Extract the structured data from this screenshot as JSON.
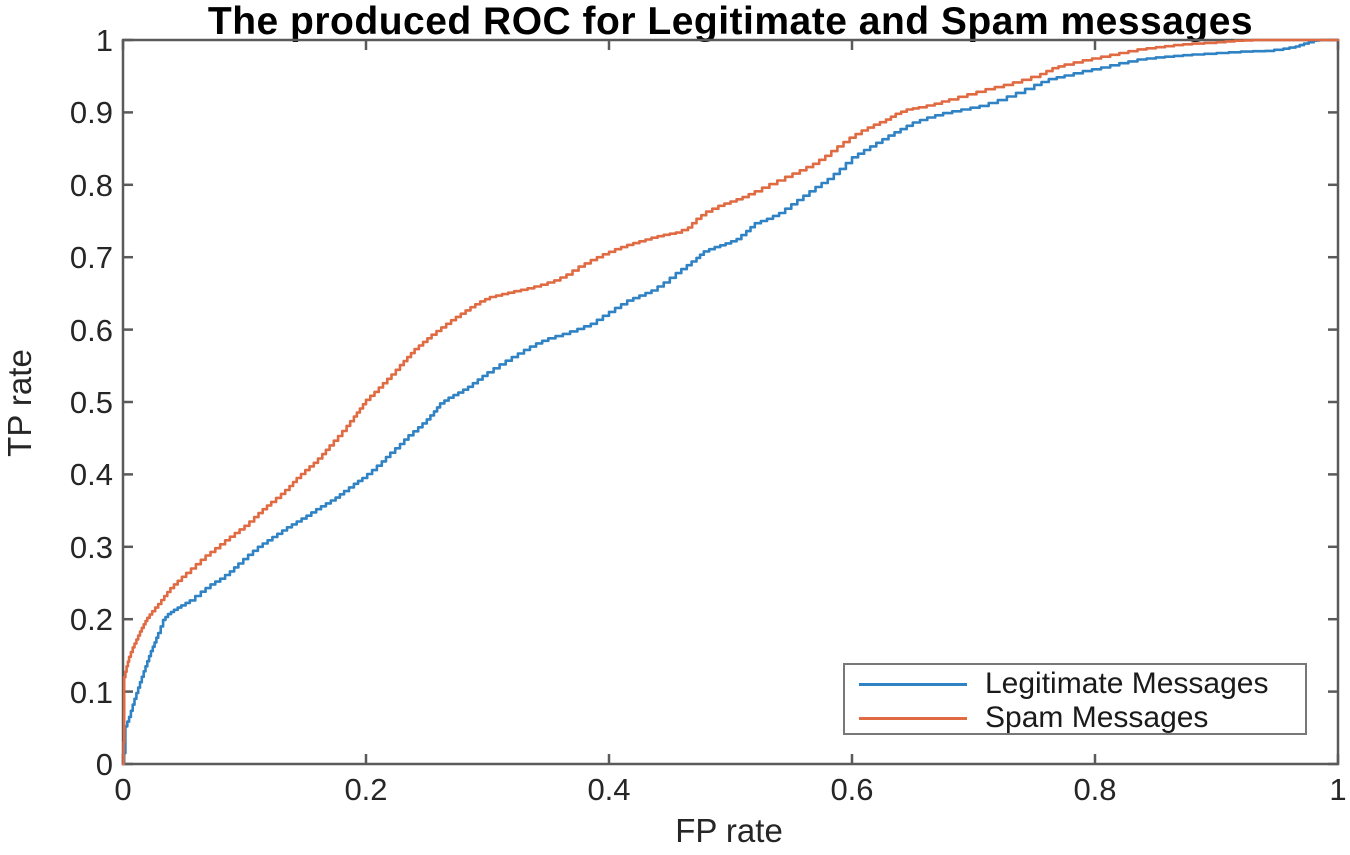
{
  "chart_data": {
    "type": "line",
    "title": "The produced ROC for Legitimate and Spam messages",
    "xlabel": "FP rate",
    "ylabel": "TP rate",
    "xlim": [
      0,
      1
    ],
    "ylim": [
      0,
      1
    ],
    "grid": false,
    "legend_position": "lower right",
    "x_ticks": [
      0,
      0.2,
      0.4,
      0.6,
      0.8,
      1
    ],
    "x_tick_labels": [
      "0",
      "0.2",
      "0.4",
      "0.6",
      "0.8",
      "1"
    ],
    "y_ticks": [
      0,
      0.1,
      0.2,
      0.3,
      0.4,
      0.5,
      0.6,
      0.7,
      0.8,
      0.9,
      1
    ],
    "y_tick_labels": [
      "0",
      "0.1",
      "0.2",
      "0.3",
      "0.4",
      "0.5",
      "0.6",
      "0.7",
      "0.8",
      "0.9",
      "1"
    ],
    "colors": {
      "axis": "#5a5a5a",
      "tick_label": "#262626",
      "title": "#000000",
      "legend_border": "#787878",
      "background": "#ffffff"
    },
    "series": [
      {
        "name": "Legitimate Messages",
        "color": "#2f82c4",
        "points": [
          [
            0,
            0
          ],
          [
            0.002,
            0.03
          ],
          [
            0.002,
            0.052
          ],
          [
            0.005,
            0.065
          ],
          [
            0.008,
            0.082
          ],
          [
            0.011,
            0.098
          ],
          [
            0.014,
            0.113
          ],
          [
            0.017,
            0.128
          ],
          [
            0.02,
            0.142
          ],
          [
            0.023,
            0.156
          ],
          [
            0.026,
            0.168
          ],
          [
            0.029,
            0.181
          ],
          [
            0.033,
            0.199
          ],
          [
            0.037,
            0.207
          ],
          [
            0.042,
            0.213
          ],
          [
            0.048,
            0.219
          ],
          [
            0.055,
            0.226
          ],
          [
            0.064,
            0.238
          ],
          [
            0.072,
            0.248
          ],
          [
            0.08,
            0.256
          ],
          [
            0.088,
            0.266
          ],
          [
            0.095,
            0.277
          ],
          [
            0.103,
            0.289
          ],
          [
            0.111,
            0.3
          ],
          [
            0.119,
            0.309
          ],
          [
            0.127,
            0.318
          ],
          [
            0.135,
            0.327
          ],
          [
            0.143,
            0.335
          ],
          [
            0.151,
            0.343
          ],
          [
            0.159,
            0.352
          ],
          [
            0.167,
            0.36
          ],
          [
            0.175,
            0.368
          ],
          [
            0.182,
            0.377
          ],
          [
            0.19,
            0.387
          ],
          [
            0.197,
            0.395
          ],
          [
            0.205,
            0.406
          ],
          [
            0.213,
            0.418
          ],
          [
            0.22,
            0.43
          ],
          [
            0.228,
            0.442
          ],
          [
            0.235,
            0.454
          ],
          [
            0.243,
            0.465
          ],
          [
            0.25,
            0.476
          ],
          [
            0.256,
            0.487
          ],
          [
            0.261,
            0.498
          ],
          [
            0.268,
            0.506
          ],
          [
            0.276,
            0.513
          ],
          [
            0.284,
            0.521
          ],
          [
            0.292,
            0.531
          ],
          [
            0.3,
            0.541
          ],
          [
            0.31,
            0.552
          ],
          [
            0.32,
            0.562
          ],
          [
            0.33,
            0.572
          ],
          [
            0.34,
            0.581
          ],
          [
            0.35,
            0.588
          ],
          [
            0.362,
            0.594
          ],
          [
            0.374,
            0.601
          ],
          [
            0.385,
            0.608
          ],
          [
            0.395,
            0.619
          ],
          [
            0.405,
            0.63
          ],
          [
            0.415,
            0.64
          ],
          [
            0.425,
            0.647
          ],
          [
            0.435,
            0.654
          ],
          [
            0.445,
            0.665
          ],
          [
            0.455,
            0.678
          ],
          [
            0.464,
            0.689
          ],
          [
            0.472,
            0.699
          ],
          [
            0.478,
            0.708
          ],
          [
            0.487,
            0.714
          ],
          [
            0.496,
            0.719
          ],
          [
            0.505,
            0.725
          ],
          [
            0.513,
            0.736
          ],
          [
            0.52,
            0.747
          ],
          [
            0.53,
            0.753
          ],
          [
            0.54,
            0.761
          ],
          [
            0.55,
            0.773
          ],
          [
            0.56,
            0.785
          ],
          [
            0.57,
            0.797
          ],
          [
            0.58,
            0.808
          ],
          [
            0.59,
            0.822
          ],
          [
            0.6,
            0.838
          ],
          [
            0.61,
            0.848
          ],
          [
            0.62,
            0.858
          ],
          [
            0.63,
            0.868
          ],
          [
            0.64,
            0.877
          ],
          [
            0.65,
            0.886
          ],
          [
            0.662,
            0.893
          ],
          [
            0.675,
            0.899
          ],
          [
            0.69,
            0.904
          ],
          [
            0.705,
            0.909
          ],
          [
            0.72,
            0.917
          ],
          [
            0.735,
            0.927
          ],
          [
            0.75,
            0.938
          ],
          [
            0.762,
            0.946
          ],
          [
            0.775,
            0.951
          ],
          [
            0.79,
            0.957
          ],
          [
            0.805,
            0.962
          ],
          [
            0.82,
            0.968
          ],
          [
            0.835,
            0.973
          ],
          [
            0.85,
            0.976
          ],
          [
            0.865,
            0.978
          ],
          [
            0.88,
            0.98
          ],
          [
            0.9,
            0.982
          ],
          [
            0.92,
            0.984
          ],
          [
            0.94,
            0.985
          ],
          [
            0.955,
            0.988
          ],
          [
            0.965,
            0.991
          ],
          [
            0.972,
            0.995
          ],
          [
            0.98,
            0.999
          ],
          [
            0.985,
            1
          ],
          [
            1,
            1
          ]
        ]
      },
      {
        "name": "Spam Messages",
        "color": "#e06a42",
        "points": [
          [
            0,
            0
          ],
          [
            0.001,
            0.06
          ],
          [
            0.001,
            0.12
          ],
          [
            0.003,
            0.135
          ],
          [
            0.005,
            0.148
          ],
          [
            0.008,
            0.161
          ],
          [
            0.011,
            0.172
          ],
          [
            0.014,
            0.183
          ],
          [
            0.017,
            0.193
          ],
          [
            0.02,
            0.202
          ],
          [
            0.024,
            0.211
          ],
          [
            0.029,
            0.221
          ],
          [
            0.034,
            0.232
          ],
          [
            0.039,
            0.243
          ],
          [
            0.045,
            0.253
          ],
          [
            0.052,
            0.264
          ],
          [
            0.06,
            0.276
          ],
          [
            0.068,
            0.288
          ],
          [
            0.076,
            0.298
          ],
          [
            0.084,
            0.309
          ],
          [
            0.092,
            0.319
          ],
          [
            0.1,
            0.329
          ],
          [
            0.108,
            0.341
          ],
          [
            0.115,
            0.352
          ],
          [
            0.122,
            0.362
          ],
          [
            0.13,
            0.373
          ],
          [
            0.137,
            0.384
          ],
          [
            0.143,
            0.395
          ],
          [
            0.15,
            0.406
          ],
          [
            0.157,
            0.416
          ],
          [
            0.164,
            0.428
          ],
          [
            0.17,
            0.44
          ],
          [
            0.177,
            0.453
          ],
          [
            0.184,
            0.467
          ],
          [
            0.19,
            0.48
          ],
          [
            0.195,
            0.491
          ],
          [
            0.2,
            0.503
          ],
          [
            0.207,
            0.514
          ],
          [
            0.214,
            0.526
          ],
          [
            0.221,
            0.538
          ],
          [
            0.228,
            0.551
          ],
          [
            0.234,
            0.562
          ],
          [
            0.24,
            0.573
          ],
          [
            0.247,
            0.583
          ],
          [
            0.254,
            0.593
          ],
          [
            0.262,
            0.603
          ],
          [
            0.27,
            0.613
          ],
          [
            0.278,
            0.622
          ],
          [
            0.286,
            0.631
          ],
          [
            0.294,
            0.639
          ],
          [
            0.302,
            0.645
          ],
          [
            0.312,
            0.649
          ],
          [
            0.322,
            0.653
          ],
          [
            0.333,
            0.657
          ],
          [
            0.344,
            0.662
          ],
          [
            0.355,
            0.668
          ],
          [
            0.365,
            0.676
          ],
          [
            0.375,
            0.687
          ],
          [
            0.385,
            0.696
          ],
          [
            0.395,
            0.704
          ],
          [
            0.405,
            0.711
          ],
          [
            0.415,
            0.717
          ],
          [
            0.425,
            0.722
          ],
          [
            0.435,
            0.727
          ],
          [
            0.445,
            0.731
          ],
          [
            0.455,
            0.734
          ],
          [
            0.465,
            0.741
          ],
          [
            0.472,
            0.753
          ],
          [
            0.48,
            0.763
          ],
          [
            0.49,
            0.771
          ],
          [
            0.5,
            0.777
          ],
          [
            0.51,
            0.783
          ],
          [
            0.52,
            0.791
          ],
          [
            0.532,
            0.801
          ],
          [
            0.545,
            0.811
          ],
          [
            0.557,
            0.82
          ],
          [
            0.568,
            0.829
          ],
          [
            0.578,
            0.84
          ],
          [
            0.588,
            0.853
          ],
          [
            0.598,
            0.865
          ],
          [
            0.608,
            0.875
          ],
          [
            0.618,
            0.883
          ],
          [
            0.628,
            0.89
          ],
          [
            0.636,
            0.898
          ],
          [
            0.645,
            0.904
          ],
          [
            0.655,
            0.907
          ],
          [
            0.668,
            0.912
          ],
          [
            0.68,
            0.918
          ],
          [
            0.695,
            0.925
          ],
          [
            0.71,
            0.932
          ],
          [
            0.725,
            0.938
          ],
          [
            0.74,
            0.945
          ],
          [
            0.755,
            0.953
          ],
          [
            0.765,
            0.961
          ],
          [
            0.775,
            0.966
          ],
          [
            0.79,
            0.972
          ],
          [
            0.805,
            0.977
          ],
          [
            0.82,
            0.982
          ],
          [
            0.835,
            0.987
          ],
          [
            0.85,
            0.99
          ],
          [
            0.865,
            0.993
          ],
          [
            0.88,
            0.995
          ],
          [
            0.9,
            0.997
          ],
          [
            0.915,
            0.999
          ],
          [
            0.93,
            1
          ],
          [
            1,
            1
          ]
        ]
      }
    ]
  }
}
